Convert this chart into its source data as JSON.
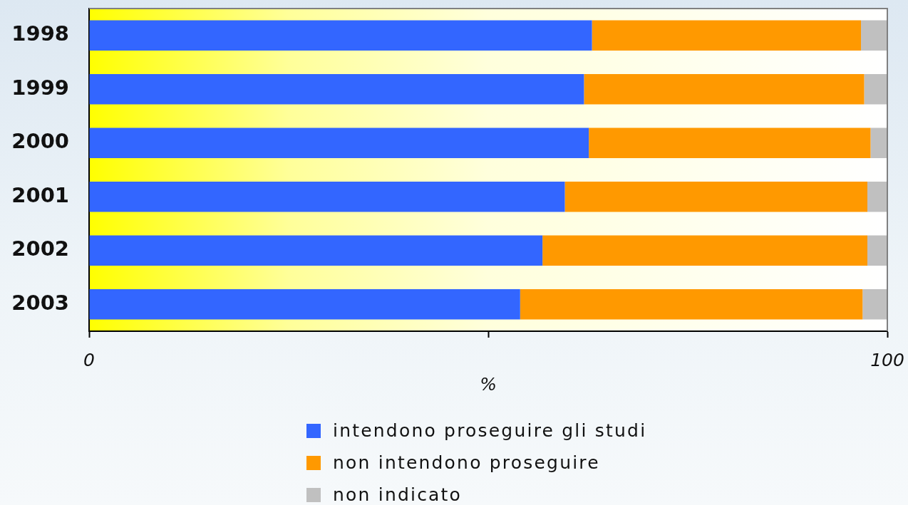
{
  "chart_data": {
    "type": "bar",
    "orientation": "horizontal",
    "stacked": true,
    "categories": [
      "1998",
      "1999",
      "2000",
      "2001",
      "2002",
      "2003"
    ],
    "series": [
      {
        "name": "intendono proseguire gli studi",
        "color": "#3366ff",
        "values": [
          63.0,
          62.0,
          62.6,
          59.6,
          56.8,
          54.0
        ]
      },
      {
        "name": "non intendono proseguire",
        "color": "#ff9900",
        "values": [
          33.7,
          35.1,
          35.3,
          37.9,
          40.7,
          42.9
        ]
      },
      {
        "name": "non indicato",
        "color": "#c0c0c0",
        "values": [
          3.3,
          2.9,
          2.1,
          2.5,
          2.5,
          3.1
        ]
      }
    ],
    "xlabel": "%",
    "xlim": [
      0,
      100
    ],
    "xticks": [
      0,
      {
        "value": 50,
        "label": null
      },
      100
    ],
    "legend": "bottom"
  }
}
